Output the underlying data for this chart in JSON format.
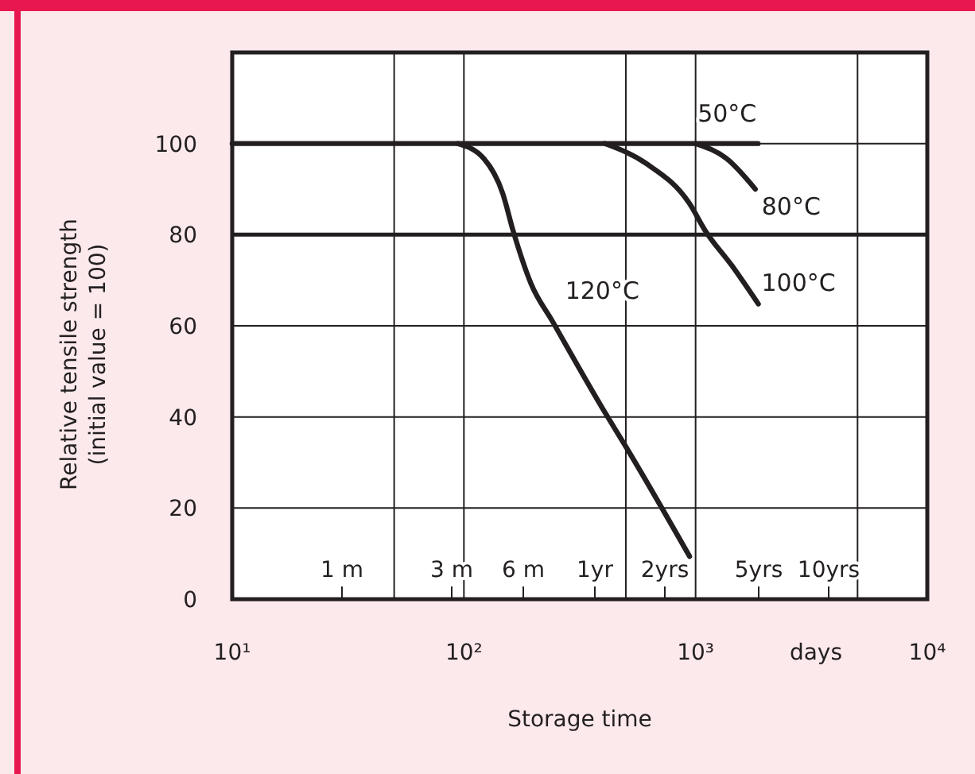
{
  "chart_data": {
    "type": "line",
    "xlabel": "Storage time",
    "ylabel": "Relative tensile strength\n(initial value = 100)",
    "log": "x",
    "xlim": [
      10,
      10000
    ],
    "xticks": [
      {
        "value": 10,
        "label": "10¹"
      },
      {
        "value": 50,
        "label": null
      },
      {
        "value": 100,
        "label": "10²"
      },
      {
        "value": 500,
        "label": null
      },
      {
        "value": 1000,
        "label": "10³"
      },
      {
        "value": 5000,
        "label": null
      },
      {
        "value": 10000,
        "label": "10⁴"
      }
    ],
    "ylim": [
      0,
      120
    ],
    "yticks": [
      0,
      20,
      40,
      60,
      80,
      100
    ],
    "grid": true,
    "marker": "none",
    "line_style": "solid",
    "ref_lines": [
      {
        "axis": "y",
        "value": 80,
        "color": "#231f20"
      }
    ],
    "annotations": [
      "days",
      "1 m",
      "3 m",
      "6 m",
      "1yr",
      "2yrs",
      "5yrs",
      "10yrs"
    ],
    "series": [
      {
        "name": "50°C",
        "color": "#231f20",
        "x": [
          10,
          1860
        ],
        "values": [
          100,
          100
        ]
      },
      {
        "name": "80°C",
        "color": "#231f20",
        "x": [
          1000,
          1360,
          1810
        ],
        "values": [
          100,
          96.7,
          90
        ]
      },
      {
        "name": "100°C",
        "color": "#231f20",
        "x": [
          406,
          617,
          942,
          1100,
          1430,
          1865
        ],
        "values": [
          100,
          95.5,
          86.8,
          80.9,
          73.3,
          64.8
        ]
      },
      {
        "name": "120°C",
        "color": "#231f20",
        "x": [
          94,
          122,
          147,
          163,
          195,
          241,
          406,
          501,
          942
        ],
        "values": [
          100,
          96.7,
          89.1,
          80.9,
          69.2,
          61,
          41,
          33.4,
          9.4
        ]
      }
    ]
  }
}
